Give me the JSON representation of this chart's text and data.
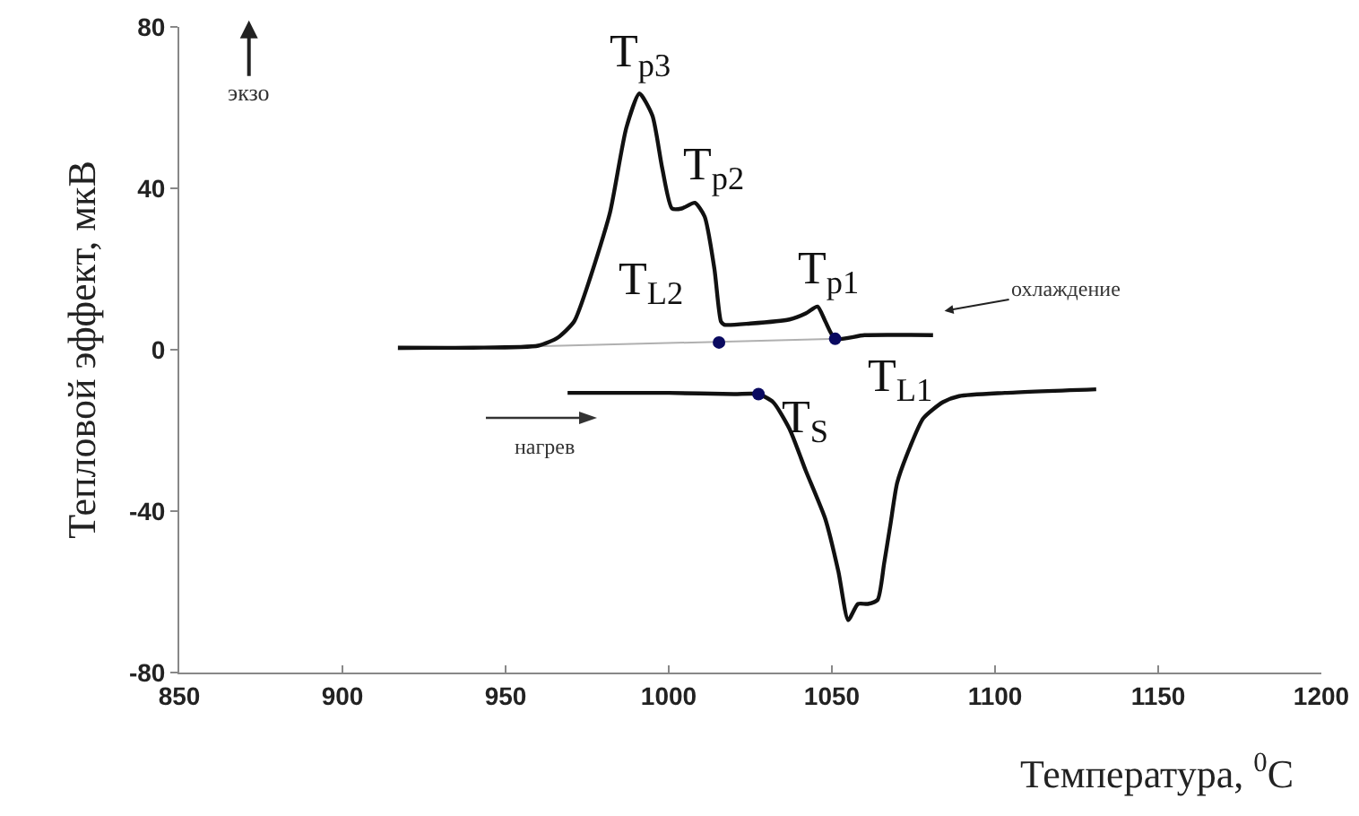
{
  "chart_data": {
    "type": "line",
    "xlabel": "Температура, $^{0}$C",
    "ylabel": "Тепловой эффект, мкВ",
    "xlim": [
      850,
      1200
    ],
    "xticks": [
      850,
      900,
      950,
      1000,
      1050,
      1100,
      1150,
      1200
    ],
    "ylim": [
      -80,
      80
    ],
    "yticks": [
      -80,
      -40,
      0,
      40,
      80
    ],
    "series": [
      {
        "color": "#b0b0b0",
        "x": [
          917,
          1052
        ],
        "values": [
          0,
          2.7
        ]
      },
      {
        "color": "#111111",
        "x": [
          917,
          940,
          960,
          966,
          971,
          976,
          982,
          987,
          991,
          995,
          998,
          1001,
          1004,
          1008,
          1011,
          1014,
          1016,
          1017,
          1025,
          1037,
          1042,
          1045.6,
          1048,
          1051,
          1060,
          1081
        ],
        "values": [
          0.5,
          0.5,
          1,
          3,
          7,
          18,
          34,
          55,
          63.5,
          58,
          45,
          35,
          35,
          36.4,
          33,
          20,
          7,
          6.2,
          6.5,
          7.5,
          9,
          10.7,
          7,
          2.7,
          3.6,
          3.6
        ]
      },
      {
        "color": "#111111",
        "x": [
          969,
          1000,
          1020,
          1027.5,
          1032,
          1037,
          1042,
          1048,
          1052,
          1055,
          1058,
          1061,
          1064,
          1066,
          1068,
          1070,
          1074,
          1078,
          1084,
          1089,
          1103,
          1131
        ],
        "values": [
          -10.7,
          -10.7,
          -11,
          -11,
          -13,
          -19.6,
          -30,
          -42,
          -55,
          -67,
          -63,
          -63,
          -62,
          -53,
          -43,
          -33,
          -24,
          -17,
          -13,
          -11.5,
          -10.7,
          -9.8
        ]
      },
      {
        "type": "scatter",
        "color": "#0a0a60",
        "x": [
          1015.4,
          1051,
          1027.5
        ],
        "values": [
          1.8,
          2.7,
          -11
        ]
      }
    ],
    "annotations": [
      {
        "text": "T$_{p3}$",
        "x": 991,
        "y": 63.5
      },
      {
        "text": "T$_{p2}$",
        "x": 1008,
        "y": 36.4
      },
      {
        "text": "T$_{p1}$",
        "x": 1045.6,
        "y": 10.7
      },
      {
        "text": "T$_{L2}$",
        "x": 1015.4,
        "y": 1.8
      },
      {
        "text": "T$_{L1}$",
        "x": 1051,
        "y": 2.7
      },
      {
        "text": "T$_{S}$",
        "x": 1027.5,
        "y": -11
      },
      "экзо",
      "охлаждение",
      "нагрев"
    ]
  }
}
